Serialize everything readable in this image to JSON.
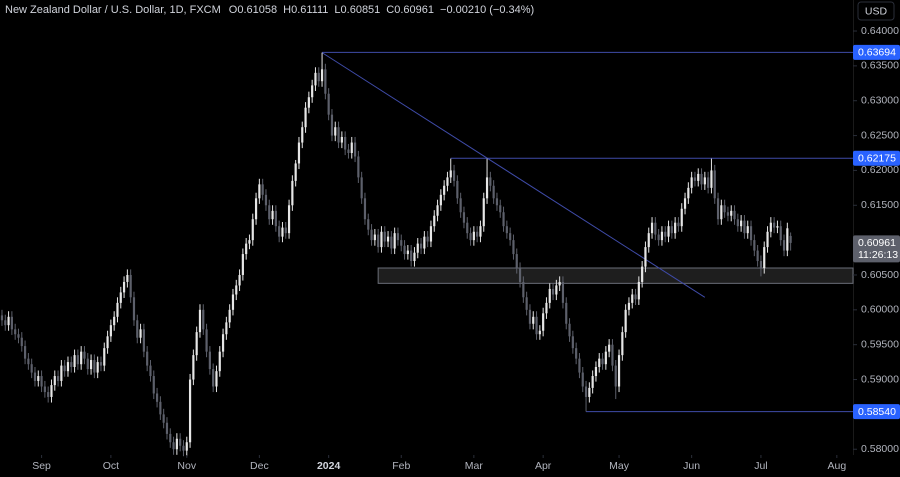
{
  "chart_data": {
    "type": "candlestick",
    "title": "New Zealand Dollar / U.S. Dollar, 1D, FXCM",
    "ohlc_header": [
      {
        "label": "O",
        "value": 0.61058
      },
      {
        "label": "H",
        "value": 0.61111
      },
      {
        "label": "L",
        "value": 0.60851
      },
      {
        "label": "C",
        "value": 0.60961
      }
    ],
    "change": "−0.00210 (−0.34%)",
    "currency": "USD",
    "countdown": "11:26:13",
    "up_color": "#e6e6e6",
    "down_color": "#5d606b",
    "xlim": [
      -0.6,
      257.9
    ],
    "xticks": [
      {
        "value": 12,
        "label": "Sep"
      },
      {
        "value": 33,
        "label": "Oct"
      },
      {
        "value": 56,
        "label": "Nov"
      },
      {
        "value": 78,
        "label": "Dec"
      },
      {
        "value": 99,
        "label": "2024"
      },
      {
        "value": 121,
        "label": "Feb"
      },
      {
        "value": 143,
        "label": "Mar"
      },
      {
        "value": 164,
        "label": "Apr"
      },
      {
        "value": 187,
        "label": "May"
      },
      {
        "value": 209,
        "label": "Jun"
      },
      {
        "value": 230,
        "label": "Jul"
      },
      {
        "value": 253,
        "label": "Aug"
      }
    ],
    "ylim": [
      0.57946,
      0.64445
    ],
    "yticks": [
      {
        "value": 0.58,
        "label": "0.58000"
      },
      {
        "value": 0.585,
        "label": "0.58500"
      },
      {
        "value": 0.59,
        "label": "0.59000"
      },
      {
        "value": 0.595,
        "label": "0.59500"
      },
      {
        "value": 0.6,
        "label": "0.60000"
      },
      {
        "value": 0.605,
        "label": "0.60500"
      },
      {
        "value": 0.61,
        "label": "0.61000"
      },
      {
        "value": 0.615,
        "label": "0.61500"
      },
      {
        "value": 0.62,
        "label": "0.62000"
      },
      {
        "value": 0.625,
        "label": "0.62500"
      },
      {
        "value": 0.63,
        "label": "0.63000"
      },
      {
        "value": 0.635,
        "label": "0.63500"
      },
      {
        "value": 0.64,
        "label": "0.64000"
      }
    ],
    "hlines": [
      {
        "value": 0.63694,
        "label": "0.63694",
        "start": 97
      },
      {
        "value": 0.62175,
        "label": "0.62175",
        "start": 136
      },
      {
        "value": 0.5854,
        "label": "0.58540",
        "start": 177
      }
    ],
    "trendline": {
      "x": [
        97,
        213
      ],
      "y": [
        0.6369,
        0.6018
      ]
    },
    "zone": {
      "x0": 114,
      "y": [
        0.6038,
        0.606
      ]
    },
    "open": [
      0.5992,
      0.5985,
      0.5978,
      0.599,
      0.5972,
      0.5965,
      0.596,
      0.5948,
      0.593,
      0.5922,
      0.591,
      0.5898,
      0.5905,
      0.589,
      0.5882,
      0.5875,
      0.5892,
      0.5905,
      0.5898,
      0.592,
      0.5912,
      0.5925,
      0.5918,
      0.5935,
      0.5922,
      0.594,
      0.593,
      0.5915,
      0.5928,
      0.591,
      0.5925,
      0.592,
      0.5945,
      0.5962,
      0.5978,
      0.599,
      0.601,
      0.6025,
      0.604,
      0.605,
      0.6018,
      0.5985,
      0.596,
      0.5972,
      0.594,
      0.592,
      0.5905,
      0.588,
      0.5868,
      0.585,
      0.5838,
      0.5822,
      0.581,
      0.58,
      0.5815,
      0.5805,
      0.5798,
      0.581,
      0.59,
      0.5935,
      0.5968,
      0.6,
      0.5972,
      0.594,
      0.5915,
      0.589,
      0.5912,
      0.594,
      0.5965,
      0.5982,
      0.6,
      0.6022,
      0.6035,
      0.605,
      0.608,
      0.6095,
      0.61,
      0.613,
      0.616,
      0.618,
      0.6165,
      0.615,
      0.613,
      0.6142,
      0.612,
      0.6105,
      0.6118,
      0.611,
      0.615,
      0.6185,
      0.621,
      0.624,
      0.6262,
      0.629,
      0.6305,
      0.6322,
      0.634,
      0.6328,
      0.6345,
      0.631,
      0.628,
      0.625,
      0.6262,
      0.624,
      0.6248,
      0.623,
      0.6225,
      0.624,
      0.622,
      0.619,
      0.616,
      0.613,
      0.6115,
      0.61,
      0.6108,
      0.609,
      0.6112,
      0.6098,
      0.6105,
      0.6088,
      0.611,
      0.61,
      0.6092,
      0.608,
      0.6085,
      0.607,
      0.6082,
      0.6095,
      0.6088,
      0.6105,
      0.6098,
      0.612,
      0.6135,
      0.615,
      0.6165,
      0.6178,
      0.619,
      0.62,
      0.6185,
      0.616,
      0.614,
      0.6125,
      0.611,
      0.61,
      0.6112,
      0.6105,
      0.612,
      0.616,
      0.619,
      0.6178,
      0.616,
      0.615,
      0.614,
      0.612,
      0.611,
      0.61,
      0.608,
      0.606,
      0.604,
      0.6018,
      0.6,
      0.598,
      0.599,
      0.5965,
      0.597,
      0.5995,
      0.601,
      0.603,
      0.6022,
      0.6035,
      0.604,
      0.601,
      0.598,
      0.5962,
      0.5945,
      0.593,
      0.591,
      0.589,
      0.5875,
      0.5888,
      0.5905,
      0.5918,
      0.593,
      0.5922,
      0.594,
      0.595,
      0.592,
      0.589,
      0.5935,
      0.5968,
      0.6,
      0.601,
      0.6022,
      0.6015,
      0.604,
      0.6062,
      0.609,
      0.611,
      0.6125,
      0.6108,
      0.61,
      0.6112,
      0.6105,
      0.612,
      0.611,
      0.6125,
      0.612,
      0.6145,
      0.616,
      0.6175,
      0.619,
      0.6185,
      0.6195,
      0.618,
      0.619,
      0.6175,
      0.62,
      0.616,
      0.613,
      0.615,
      0.614,
      0.6135,
      0.6142,
      0.613,
      0.612,
      0.6128,
      0.611,
      0.612,
      0.61,
      0.6085,
      0.607,
      0.606,
      0.609,
      0.6112,
      0.6125,
      0.6118,
      0.612,
      0.61,
      0.6085,
      0.6106
    ],
    "high": [
      0.6,
      0.5993,
      0.5998,
      0.5998,
      0.598,
      0.5973,
      0.5968,
      0.5956,
      0.5938,
      0.593,
      0.5918,
      0.5913,
      0.5913,
      0.5898,
      0.589,
      0.59,
      0.5913,
      0.5913,
      0.5928,
      0.5928,
      0.5933,
      0.5933,
      0.5943,
      0.5943,
      0.5948,
      0.5948,
      0.5938,
      0.5936,
      0.5936,
      0.5933,
      0.5933,
      0.5953,
      0.597,
      0.5986,
      0.5998,
      0.6018,
      0.6033,
      0.6048,
      0.6058,
      0.6058,
      0.6026,
      0.5993,
      0.598,
      0.598,
      0.5948,
      0.5928,
      0.5913,
      0.5888,
      0.5876,
      0.5858,
      0.5846,
      0.583,
      0.5818,
      0.5823,
      0.5823,
      0.5813,
      0.5818,
      0.5908,
      0.5943,
      0.5976,
      0.6008,
      0.6008,
      0.598,
      0.5948,
      0.5923,
      0.592,
      0.5948,
      0.5973,
      0.599,
      0.6008,
      0.603,
      0.6043,
      0.6058,
      0.6088,
      0.6103,
      0.6108,
      0.6138,
      0.6168,
      0.6188,
      0.6188,
      0.6173,
      0.6158,
      0.615,
      0.615,
      0.6128,
      0.6126,
      0.6126,
      0.6158,
      0.6193,
      0.6215,
      0.6248,
      0.627,
      0.6298,
      0.6313,
      0.633,
      0.6348,
      0.6348,
      0.6369,
      0.6353,
      0.6318,
      0.6288,
      0.627,
      0.627,
      0.6256,
      0.6256,
      0.6238,
      0.6248,
      0.6248,
      0.6228,
      0.6198,
      0.6168,
      0.6138,
      0.6123,
      0.6116,
      0.6116,
      0.612,
      0.612,
      0.6113,
      0.6113,
      0.6118,
      0.6118,
      0.6108,
      0.61,
      0.6093,
      0.6093,
      0.609,
      0.6103,
      0.6103,
      0.6113,
      0.6113,
      0.6128,
      0.6143,
      0.6158,
      0.6173,
      0.6186,
      0.6198,
      0.6217,
      0.6208,
      0.6193,
      0.6168,
      0.6148,
      0.6133,
      0.6118,
      0.612,
      0.612,
      0.6128,
      0.6168,
      0.6217,
      0.6198,
      0.6186,
      0.6168,
      0.6158,
      0.6148,
      0.6128,
      0.6118,
      0.6108,
      0.6088,
      0.6068,
      0.6048,
      0.6026,
      0.6008,
      0.5998,
      0.5998,
      0.5978,
      0.6003,
      0.6018,
      0.6038,
      0.6038,
      0.6043,
      0.6048,
      0.6048,
      0.6018,
      0.5988,
      0.597,
      0.5953,
      0.5938,
      0.5918,
      0.5898,
      0.5896,
      0.5913,
      0.5926,
      0.5938,
      0.5938,
      0.5948,
      0.5958,
      0.5958,
      0.5928,
      0.5943,
      0.5976,
      0.6008,
      0.6018,
      0.603,
      0.603,
      0.6048,
      0.607,
      0.6098,
      0.6118,
      0.6133,
      0.6133,
      0.6116,
      0.612,
      0.612,
      0.6128,
      0.6128,
      0.6133,
      0.6133,
      0.6153,
      0.6168,
      0.6183,
      0.6198,
      0.6198,
      0.6203,
      0.6203,
      0.6198,
      0.6198,
      0.6217,
      0.6208,
      0.6168,
      0.6158,
      0.6158,
      0.6148,
      0.615,
      0.615,
      0.6138,
      0.6136,
      0.6136,
      0.6128,
      0.6128,
      0.6108,
      0.6093,
      0.6078,
      0.6098,
      0.612,
      0.6133,
      0.6133,
      0.6128,
      0.6128,
      0.6108,
      0.6125,
      0.6111
    ],
    "low": [
      0.5977,
      0.597,
      0.597,
      0.5964,
      0.5957,
      0.5952,
      0.594,
      0.5922,
      0.5914,
      0.5902,
      0.589,
      0.589,
      0.5882,
      0.5874,
      0.5867,
      0.5867,
      0.5884,
      0.589,
      0.589,
      0.5904,
      0.5904,
      0.591,
      0.591,
      0.5914,
      0.5914,
      0.5922,
      0.5907,
      0.5907,
      0.5902,
      0.5902,
      0.5912,
      0.5912,
      0.5937,
      0.5954,
      0.597,
      0.5982,
      0.6002,
      0.6017,
      0.6032,
      0.601,
      0.5977,
      0.5952,
      0.5952,
      0.5932,
      0.5912,
      0.5897,
      0.5872,
      0.586,
      0.5842,
      0.583,
      0.5814,
      0.5802,
      0.5792,
      0.5792,
      0.5797,
      0.579,
      0.579,
      0.5802,
      0.5892,
      0.5927,
      0.596,
      0.5964,
      0.5932,
      0.5907,
      0.5882,
      0.5882,
      0.5904,
      0.5932,
      0.5957,
      0.5974,
      0.5992,
      0.6014,
      0.6027,
      0.6042,
      0.6072,
      0.6087,
      0.6092,
      0.6122,
      0.6152,
      0.6157,
      0.6142,
      0.6122,
      0.6122,
      0.6112,
      0.6097,
      0.6097,
      0.6102,
      0.6102,
      0.6142,
      0.6177,
      0.6202,
      0.6232,
      0.6254,
      0.6282,
      0.6297,
      0.6314,
      0.632,
      0.632,
      0.6302,
      0.6272,
      0.6242,
      0.6242,
      0.6232,
      0.6232,
      0.6222,
      0.6217,
      0.6217,
      0.6212,
      0.6182,
      0.6152,
      0.6122,
      0.6107,
      0.6092,
      0.6092,
      0.6082,
      0.6082,
      0.609,
      0.609,
      0.608,
      0.608,
      0.6092,
      0.6084,
      0.6072,
      0.6072,
      0.6062,
      0.6062,
      0.6074,
      0.608,
      0.608,
      0.609,
      0.609,
      0.6112,
      0.6127,
      0.6142,
      0.6157,
      0.617,
      0.6182,
      0.6177,
      0.6152,
      0.6132,
      0.6117,
      0.6102,
      0.6092,
      0.6092,
      0.6097,
      0.6097,
      0.6112,
      0.6152,
      0.617,
      0.6152,
      0.6142,
      0.6132,
      0.6112,
      0.6102,
      0.6092,
      0.6072,
      0.6052,
      0.6032,
      0.601,
      0.5992,
      0.5972,
      0.5972,
      0.5957,
      0.5957,
      0.5962,
      0.5987,
      0.6002,
      0.6014,
      0.6014,
      0.6027,
      0.6002,
      0.5972,
      0.5954,
      0.5937,
      0.5922,
      0.5902,
      0.5882,
      0.5854,
      0.5867,
      0.588,
      0.5897,
      0.591,
      0.5914,
      0.5914,
      0.5932,
      0.5912,
      0.5872,
      0.5882,
      0.5927,
      0.596,
      0.5992,
      0.6002,
      0.6007,
      0.6007,
      0.6032,
      0.6054,
      0.6082,
      0.6102,
      0.61,
      0.6092,
      0.6092,
      0.6097,
      0.6097,
      0.6102,
      0.6102,
      0.6112,
      0.6112,
      0.6137,
      0.6152,
      0.6167,
      0.6177,
      0.6177,
      0.6172,
      0.6172,
      0.6167,
      0.6167,
      0.6152,
      0.6122,
      0.6122,
      0.6132,
      0.6127,
      0.6127,
      0.6122,
      0.6112,
      0.6112,
      0.6102,
      0.6102,
      0.6092,
      0.6077,
      0.6062,
      0.6048,
      0.6052,
      0.6082,
      0.6104,
      0.611,
      0.611,
      0.6092,
      0.6077,
      0.6077,
      0.6085
    ],
    "close": [
      0.5985,
      0.5978,
      0.599,
      0.5972,
      0.5965,
      0.596,
      0.5948,
      0.593,
      0.5922,
      0.591,
      0.5898,
      0.5905,
      0.589,
      0.5882,
      0.5875,
      0.5892,
      0.5905,
      0.5898,
      0.592,
      0.5912,
      0.5925,
      0.5918,
      0.5935,
      0.5922,
      0.594,
      0.593,
      0.5915,
      0.5928,
      0.591,
      0.5925,
      0.592,
      0.5945,
      0.5962,
      0.5978,
      0.599,
      0.601,
      0.6025,
      0.604,
      0.605,
      0.6018,
      0.5985,
      0.596,
      0.5972,
      0.594,
      0.592,
      0.5905,
      0.588,
      0.5868,
      0.585,
      0.5838,
      0.5822,
      0.581,
      0.58,
      0.5815,
      0.5805,
      0.5798,
      0.581,
      0.59,
      0.5935,
      0.5968,
      0.6,
      0.5972,
      0.594,
      0.5915,
      0.589,
      0.5912,
      0.594,
      0.5965,
      0.5982,
      0.6,
      0.6022,
      0.6035,
      0.605,
      0.608,
      0.6095,
      0.61,
      0.613,
      0.616,
      0.618,
      0.6165,
      0.615,
      0.613,
      0.6142,
      0.612,
      0.6105,
      0.6118,
      0.611,
      0.615,
      0.6185,
      0.621,
      0.624,
      0.6262,
      0.629,
      0.6305,
      0.6322,
      0.634,
      0.6328,
      0.6345,
      0.631,
      0.628,
      0.625,
      0.6262,
      0.624,
      0.6248,
      0.623,
      0.6225,
      0.624,
      0.622,
      0.619,
      0.616,
      0.613,
      0.6115,
      0.61,
      0.6108,
      0.609,
      0.6112,
      0.6098,
      0.6105,
      0.6088,
      0.611,
      0.61,
      0.6092,
      0.608,
      0.6085,
      0.607,
      0.6082,
      0.6095,
      0.6088,
      0.6105,
      0.6098,
      0.612,
      0.6135,
      0.615,
      0.6165,
      0.6178,
      0.619,
      0.62,
      0.6185,
      0.616,
      0.614,
      0.6125,
      0.611,
      0.61,
      0.6112,
      0.6105,
      0.612,
      0.616,
      0.619,
      0.6178,
      0.616,
      0.615,
      0.614,
      0.612,
      0.611,
      0.61,
      0.608,
      0.606,
      0.604,
      0.6018,
      0.6,
      0.598,
      0.599,
      0.5965,
      0.597,
      0.5995,
      0.601,
      0.603,
      0.6022,
      0.6035,
      0.604,
      0.601,
      0.598,
      0.5962,
      0.5945,
      0.593,
      0.591,
      0.589,
      0.5875,
      0.5888,
      0.5905,
      0.5918,
      0.593,
      0.5922,
      0.594,
      0.595,
      0.592,
      0.589,
      0.5935,
      0.5968,
      0.6,
      0.601,
      0.6022,
      0.6015,
      0.604,
      0.6062,
      0.609,
      0.611,
      0.6125,
      0.6108,
      0.61,
      0.6112,
      0.6105,
      0.612,
      0.611,
      0.6125,
      0.612,
      0.6145,
      0.616,
      0.6175,
      0.619,
      0.6185,
      0.6195,
      0.618,
      0.619,
      0.6175,
      0.62,
      0.616,
      0.613,
      0.615,
      0.614,
      0.6135,
      0.6142,
      0.613,
      0.612,
      0.6128,
      0.611,
      0.612,
      0.61,
      0.6085,
      0.607,
      0.606,
      0.609,
      0.6112,
      0.6125,
      0.6118,
      0.612,
      0.61,
      0.6085,
      0.6117,
      0.6096
    ]
  }
}
